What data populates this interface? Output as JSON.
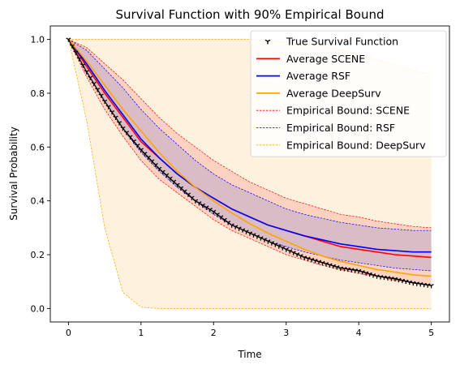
{
  "chart_data": {
    "type": "line",
    "title": "Survival Function with 90% Empirical Bound",
    "xlabel": "Time",
    "ylabel": "Survival Probability",
    "xlim": [
      -0.25,
      5.25
    ],
    "ylim": [
      -0.05,
      1.05
    ],
    "xticks": [
      0,
      1,
      2,
      3,
      4,
      5
    ],
    "yticks": [
      0.0,
      0.2,
      0.4,
      0.6,
      0.8,
      1.0
    ],
    "grid": false,
    "legend_position": "top-right",
    "x": [
      0,
      0.25,
      0.5,
      0.75,
      1.0,
      1.25,
      1.5,
      1.75,
      2.0,
      2.25,
      2.5,
      2.75,
      3.0,
      3.25,
      3.5,
      3.75,
      4.0,
      4.25,
      4.5,
      4.75,
      5.0
    ],
    "series": [
      {
        "name": "True Survival Function",
        "role": "true",
        "color": "#000000",
        "values": [
          1.0,
          0.88,
          0.77,
          0.67,
          0.59,
          0.52,
          0.46,
          0.4,
          0.36,
          0.31,
          0.28,
          0.25,
          0.22,
          0.19,
          0.17,
          0.15,
          0.14,
          0.12,
          0.11,
          0.095,
          0.085
        ]
      },
      {
        "name": "Average SCENE",
        "role": "mean",
        "color": "#ff0000",
        "values": [
          1.0,
          0.9,
          0.8,
          0.71,
          0.62,
          0.56,
          0.5,
          0.45,
          0.41,
          0.37,
          0.34,
          0.31,
          0.29,
          0.27,
          0.25,
          0.23,
          0.22,
          0.21,
          0.2,
          0.195,
          0.19
        ]
      },
      {
        "name": "Average RSF",
        "role": "mean",
        "color": "#0000ff",
        "values": [
          1.0,
          0.91,
          0.81,
          0.72,
          0.63,
          0.56,
          0.5,
          0.45,
          0.41,
          0.37,
          0.34,
          0.31,
          0.29,
          0.27,
          0.255,
          0.24,
          0.23,
          0.22,
          0.215,
          0.21,
          0.21
        ]
      },
      {
        "name": "Average DeepSurv",
        "role": "mean",
        "color": "#ffa500",
        "values": [
          1.0,
          0.92,
          0.83,
          0.74,
          0.66,
          0.58,
          0.51,
          0.45,
          0.4,
          0.355,
          0.315,
          0.28,
          0.25,
          0.22,
          0.195,
          0.175,
          0.16,
          0.145,
          0.135,
          0.125,
          0.12
        ]
      },
      {
        "name": "Empirical Bound: SCENE",
        "role": "band",
        "color": "#ff0000",
        "fill": "#fa8072",
        "lower": [
          1.0,
          0.86,
          0.74,
          0.64,
          0.55,
          0.48,
          0.43,
          0.38,
          0.33,
          0.29,
          0.26,
          0.23,
          0.2,
          0.18,
          0.16,
          0.145,
          0.13,
          0.12,
          0.105,
          0.095,
          0.085
        ],
        "upper": [
          1.0,
          0.97,
          0.91,
          0.85,
          0.78,
          0.71,
          0.65,
          0.6,
          0.55,
          0.51,
          0.47,
          0.44,
          0.41,
          0.39,
          0.37,
          0.35,
          0.34,
          0.325,
          0.315,
          0.305,
          0.3
        ]
      },
      {
        "name": "Empirical Bound: RSF",
        "role": "band",
        "color": "#0000ff",
        "fill": "#8f8fcf",
        "lower": [
          1.0,
          0.88,
          0.77,
          0.67,
          0.58,
          0.51,
          0.45,
          0.4,
          0.35,
          0.31,
          0.28,
          0.25,
          0.23,
          0.21,
          0.195,
          0.18,
          0.17,
          0.16,
          0.15,
          0.145,
          0.14
        ],
        "upper": [
          1.0,
          0.96,
          0.89,
          0.82,
          0.74,
          0.67,
          0.61,
          0.55,
          0.5,
          0.46,
          0.43,
          0.4,
          0.37,
          0.35,
          0.335,
          0.32,
          0.31,
          0.3,
          0.295,
          0.29,
          0.29
        ]
      },
      {
        "name": "Empirical Bound: DeepSurv",
        "role": "band",
        "color": "#ffa500",
        "fill": "#fde7c4",
        "lower": [
          1.0,
          0.7,
          0.3,
          0.06,
          0.005,
          0.0,
          0.0,
          0.0,
          0.0,
          0.0,
          0.0,
          0.0,
          0.0,
          0.0,
          0.0,
          0.0,
          0.0,
          0.0,
          0.0,
          0.0,
          0.0
        ],
        "upper": [
          1.0,
          1.0,
          1.0,
          1.0,
          1.0,
          1.0,
          1.0,
          1.0,
          1.0,
          1.0,
          1.0,
          0.995,
          0.99,
          0.985,
          0.975,
          0.96,
          0.945,
          0.925,
          0.905,
          0.885,
          0.87
        ]
      }
    ],
    "legend": [
      {
        "label": "True Survival Function",
        "marker": "tri-down",
        "color": "#000000"
      },
      {
        "label": "Average SCENE",
        "style": "solid",
        "color": "#ff0000"
      },
      {
        "label": "Average RSF",
        "style": "solid",
        "color": "#0000ff"
      },
      {
        "label": "Average DeepSurv",
        "style": "solid",
        "color": "#ffa500"
      },
      {
        "label": "Empirical Bound: SCENE",
        "style": "dashed",
        "color": "#ff0000"
      },
      {
        "label": "Empirical Bound: RSF",
        "style": "dashed",
        "color": "#0000ff"
      },
      {
        "label": "Empirical Bound: DeepSurv",
        "style": "dashed",
        "color": "#ffa500"
      }
    ]
  }
}
